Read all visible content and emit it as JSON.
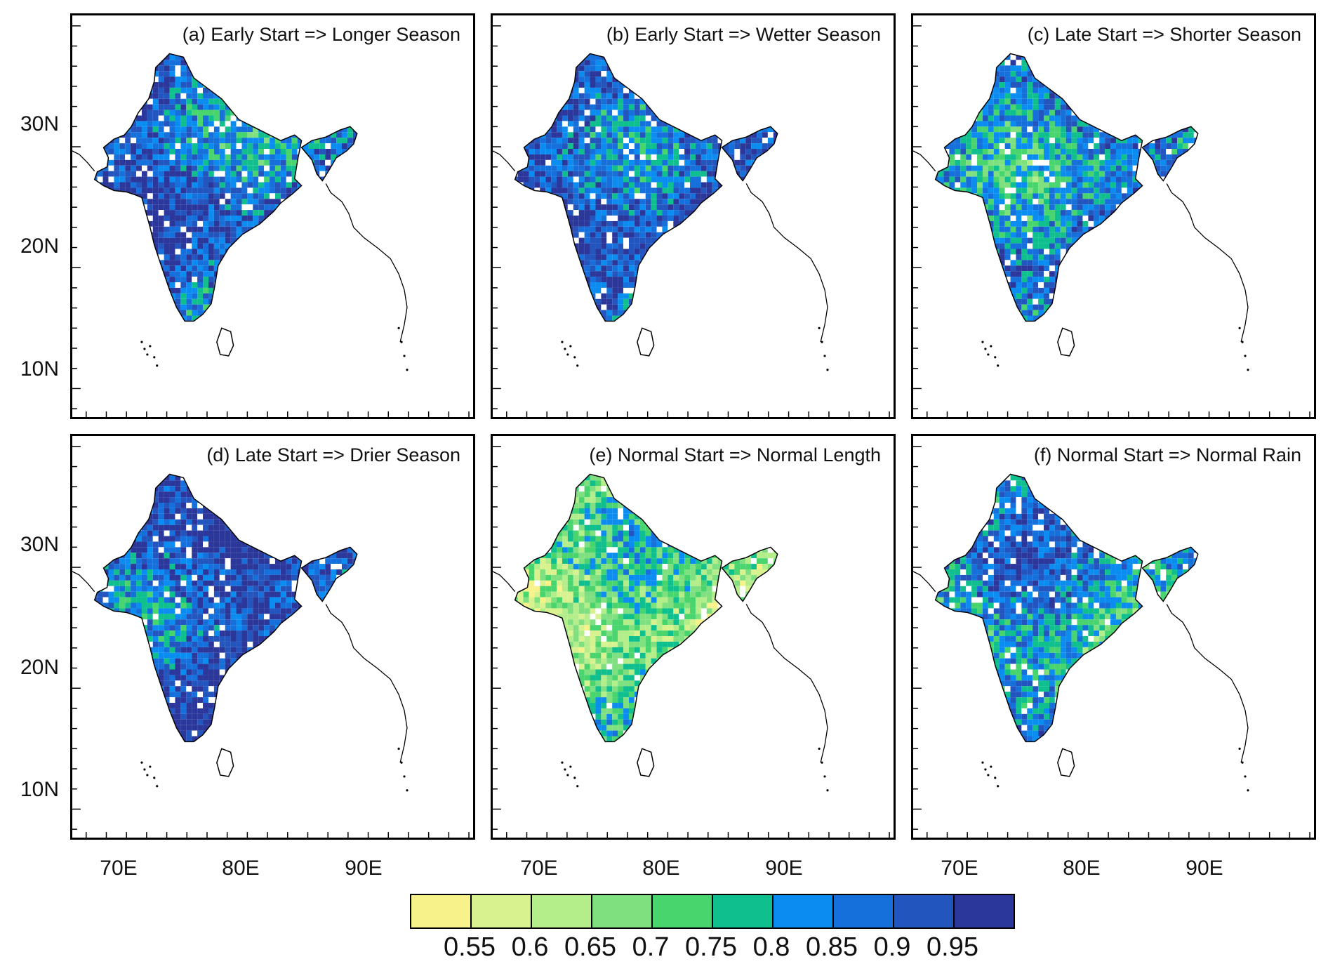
{
  "panels": [
    {
      "title": "(a) Early Start => Longer Season",
      "bias": 0.86
    },
    {
      "title": "(b) Early Start => Wetter Season",
      "bias": 0.9
    },
    {
      "title": "(c) Late Start => Shorter Season",
      "bias": 0.84
    },
    {
      "title": "(d) Late Start => Drier Season",
      "bias": 0.91
    },
    {
      "title": "(e) Normal Start => Normal Length",
      "bias": 0.66
    },
    {
      "title": "(f) Normal Start => Normal Rain",
      "bias": 0.78
    }
  ],
  "lat_labels": [
    "30N",
    "20N",
    "10N"
  ],
  "lon_labels": [
    "70E",
    "80E",
    "90E"
  ],
  "colorbar": {
    "colors": [
      "#f7f38a",
      "#d7f28f",
      "#b4ee8a",
      "#7fe080",
      "#48d56e",
      "#0fbf8e",
      "#0a8cf0",
      "#1670dc",
      "#2355bf",
      "#2b379a"
    ],
    "labels": [
      "0.55",
      "0.6",
      "0.65",
      "0.7",
      "0.75",
      "0.8",
      "0.85",
      "0.9",
      "0.95"
    ]
  }
}
